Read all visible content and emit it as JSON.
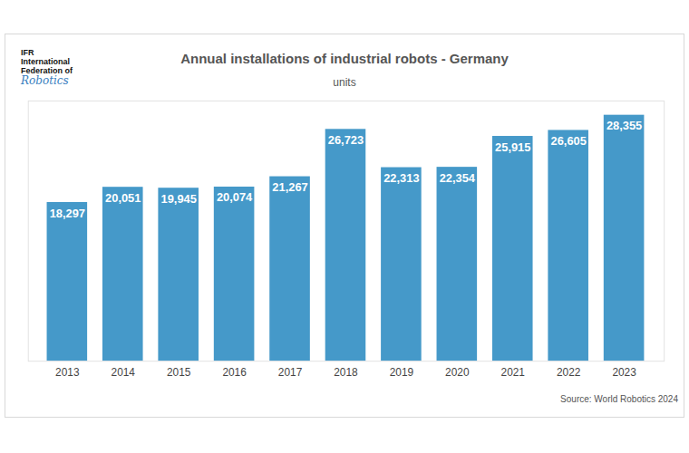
{
  "chart_data": {
    "type": "bar",
    "title": "Annual installations of industrial robots - Germany",
    "subtitle": "units",
    "source": "Source: World Robotics 2024",
    "logo": [
      "IFR",
      "International",
      "Federation of",
      "Robotics"
    ],
    "categories": [
      "2013",
      "2014",
      "2015",
      "2016",
      "2017",
      "2018",
      "2019",
      "2020",
      "2021",
      "2022",
      "2023"
    ],
    "values": [
      18297,
      20051,
      19945,
      20074,
      21267,
      26723,
      22313,
      22354,
      25915,
      26605,
      28355
    ],
    "value_labels": [
      "18,297",
      "20,051",
      "19,945",
      "20,074",
      "21,267",
      "26,723",
      "22,313",
      "22,354",
      "25,915",
      "26,605",
      "28,355"
    ],
    "color": "#4599c9",
    "ylim": [
      0,
      30000
    ],
    "data_labels": true,
    "tick_labels": "x",
    "grid": false
  }
}
